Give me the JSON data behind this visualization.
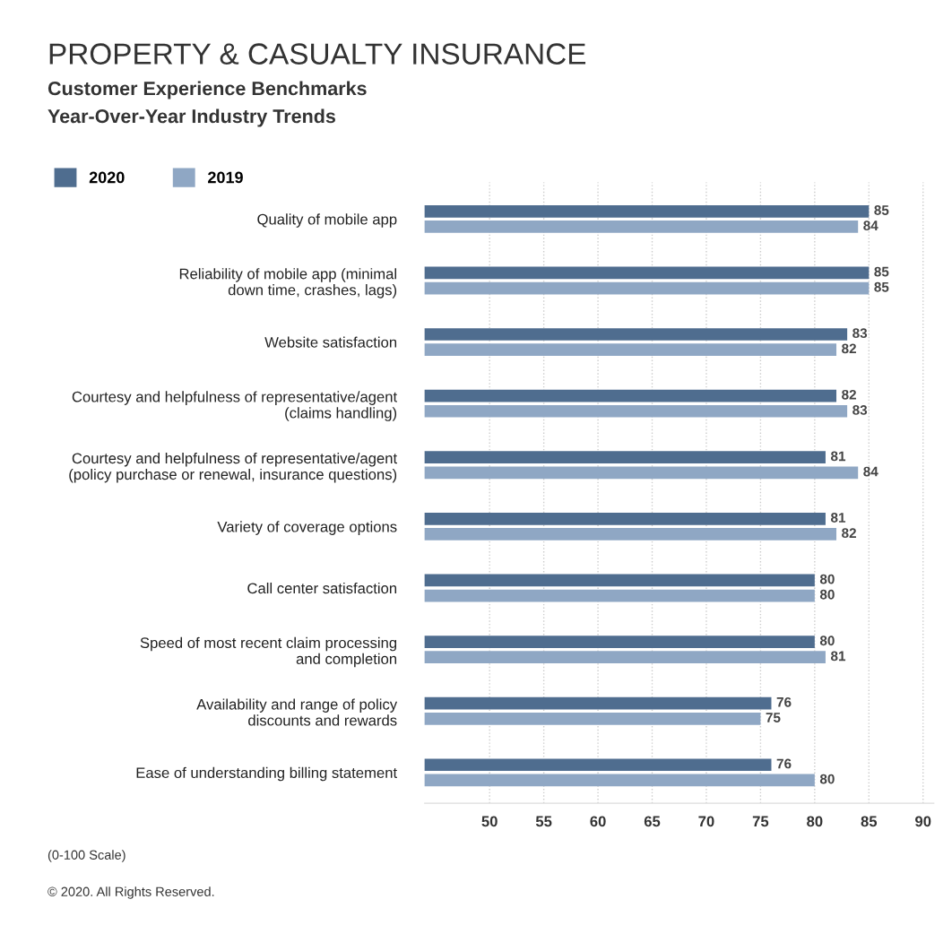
{
  "chart_data": {
    "type": "bar",
    "orientation": "horizontal",
    "title": "PROPERTY & CASUALTY INSURANCE",
    "subtitle": "Customer Experience Benchmarks\nYear-Over-Year Industry Trends",
    "categories": [
      "Quality of mobile app",
      "Reliability of mobile app (minimal\ndown time, crashes, lags)",
      "Website satisfaction",
      "Courtesy and helpfulness of representative/agent\n(claims handling)",
      "Courtesy and helpfulness of representative/agent\n(policy purchase or renewal, insurance questions)",
      "Variety of coverage options",
      "Call center satisfaction",
      "Speed of most recent claim processing\nand completion",
      "Availability and range of policy\ndiscounts and rewards",
      "Ease of understanding billing statement"
    ],
    "series": [
      {
        "name": "2020",
        "color": "#4f6d8f",
        "values": [
          85,
          85,
          83,
          82,
          81,
          81,
          80,
          80,
          76,
          76
        ]
      },
      {
        "name": "2019",
        "color": "#8fa7c4",
        "values": [
          84,
          85,
          82,
          83,
          84,
          82,
          80,
          81,
          75,
          80
        ]
      }
    ],
    "xlim": [
      44,
      91
    ],
    "xticks": [
      50,
      55,
      60,
      65,
      70,
      75,
      80,
      85,
      90
    ],
    "grid": "x",
    "legend": "top left",
    "data_labels": true,
    "annotations": [
      "(0-100 Scale)",
      "© 2020. All Rights Reserved."
    ]
  }
}
